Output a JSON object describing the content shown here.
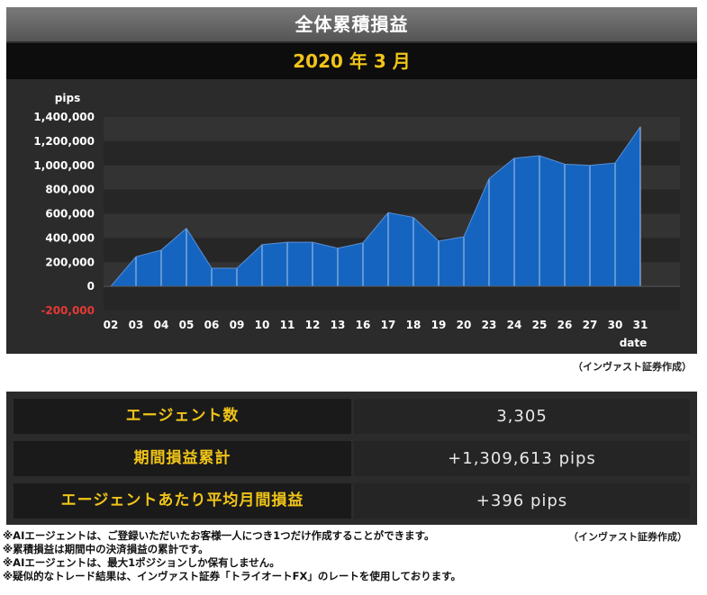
{
  "title": "全体累積損益",
  "period": "2020 年 3 月",
  "credit": "（インヴァスト証券作成）",
  "chart_data": {
    "type": "area",
    "ylabel": "pips",
    "xlabel": "date",
    "ylim": [
      -200000,
      1400000
    ],
    "yticks": [
      {
        "value": 1400000,
        "label": "1,400,000"
      },
      {
        "value": 1200000,
        "label": "1,200,000"
      },
      {
        "value": 1000000,
        "label": "1,000,000"
      },
      {
        "value": 800000,
        "label": "800,000"
      },
      {
        "value": 600000,
        "label": "600,000"
      },
      {
        "value": 400000,
        "label": "400,000"
      },
      {
        "value": 200000,
        "label": "200,000"
      },
      {
        "value": 0,
        "label": "0"
      },
      {
        "value": -200000,
        "label": "-200,000"
      }
    ],
    "categories": [
      "02",
      "03",
      "04",
      "05",
      "06",
      "09",
      "10",
      "11",
      "12",
      "13",
      "16",
      "17",
      "18",
      "19",
      "20",
      "23",
      "24",
      "25",
      "26",
      "27",
      "30",
      "31"
    ],
    "values": [
      0,
      245000,
      300000,
      480000,
      150000,
      150000,
      345000,
      365000,
      365000,
      315000,
      360000,
      610000,
      570000,
      375000,
      410000,
      890000,
      1060000,
      1080000,
      1010000,
      1000000,
      1020000,
      1320000
    ],
    "colors": {
      "fill": "#1565c0",
      "negative_tick": "#e53935"
    },
    "grid": true
  },
  "stats": [
    {
      "label": "エージェント数",
      "value": "3,305"
    },
    {
      "label": "期間損益累計",
      "value": "+1,309,613 pips"
    },
    {
      "label": "エージェントあたり平均月間損益",
      "value": "+396 pips"
    }
  ],
  "notes": [
    "※AIエージェントは、ご登録いただいたお客様一人につき1つだけ作成することができます。",
    "※累積損益は期間中の決済損益の累計です。",
    "※AIエージェントは、最大1ポジションしか保有しません。",
    "※疑似的なトレード結果は、インヴァスト証券「トライオートFX」のレートを使用しております。"
  ]
}
